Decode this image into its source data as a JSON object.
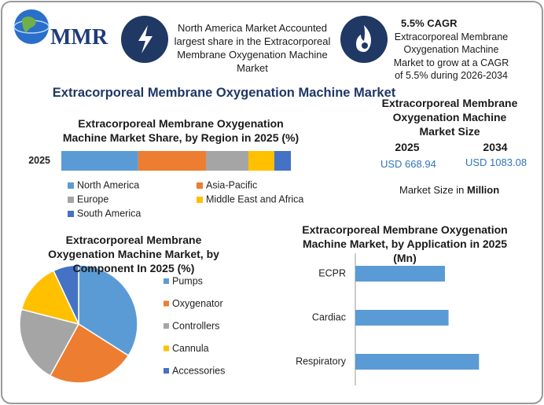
{
  "header": {
    "logo": "MMR",
    "fact1": "North America Market Accounted largest share in the Extracorporeal Membrane Oxygenation Machine Market",
    "fact2_title": "5.5% CAGR",
    "fact2": "Extracorporeal Membrane Oxygenation Machine Market to grow at a CAGR of 5.5% during 2026-2034"
  },
  "title": "Extracorporeal Membrane Oxygenation Machine Market",
  "market_size": {
    "title": "Extracorporeal Membrane Oxygenation Machine Market Size",
    "years": [
      "2025",
      "2034"
    ],
    "values": [
      "USD 668.94",
      "USD 1083.08"
    ],
    "note": "Market Size in",
    "note_unit": "Million"
  },
  "chart_data": [
    {
      "type": "stacked-bar",
      "title": "Extracorporeal Membrane Oxygenation Machine Market Share, by Region in 2025 (%)",
      "categories": [
        "2025"
      ],
      "xlim": [
        0,
        100
      ],
      "legend": "bottom",
      "series": [
        {
          "name": "North America",
          "color": "#5b9bd5",
          "values": [
            33.5
          ]
        },
        {
          "name": "Asia-Pacific",
          "color": "#ed7d31",
          "values": [
            29.5
          ]
        },
        {
          "name": "Europe",
          "color": "#a5a5a5",
          "values": [
            18.5
          ]
        },
        {
          "name": "Middle East and Africa",
          "color": "#ffc000",
          "values": [
            11.3
          ]
        },
        {
          "name": "South America",
          "color": "#4472c4",
          "values": [
            7.2
          ]
        }
      ]
    },
    {
      "type": "pie",
      "title": "Extracorporeal Membrane Oxygenation Machine Market, by Component In 2025 (%)",
      "categories": [
        "Pumps",
        "Oxygenator",
        "Controllers",
        "Cannula",
        "Accessories"
      ],
      "values": [
        34,
        24,
        21,
        14,
        7
      ],
      "colors": [
        "#5b9bd5",
        "#ed7d31",
        "#a5a5a5",
        "#ffc000",
        "#4472c4"
      ],
      "legend": "right"
    },
    {
      "type": "hbar",
      "title": "Extracorporeal Membrane Oxygenation Machine Market, by Application in 2025 (Mn)",
      "categories": [
        "ECPR",
        "Cardiac",
        "Respiratory"
      ],
      "values": [
        100,
        104,
        138
      ],
      "color": "#5b9bd5",
      "xlim": [
        0,
        200
      ]
    }
  ]
}
